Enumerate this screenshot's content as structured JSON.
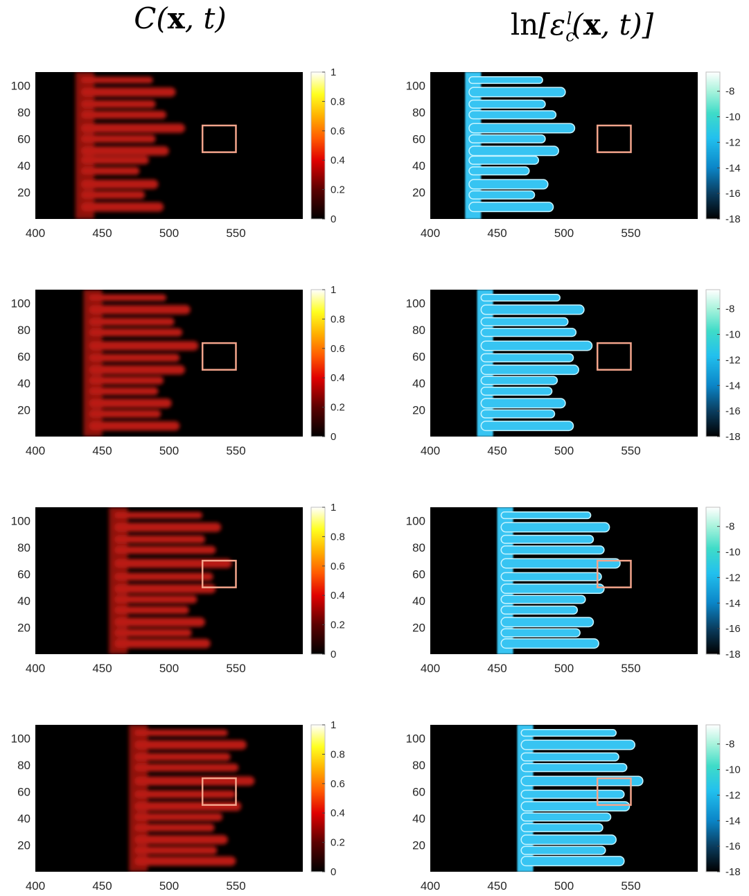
{
  "chart_data": [
    {
      "type": "heatmap",
      "title": "C(x, t)",
      "xlabel": "",
      "ylabel": "",
      "xlim": [
        400,
        600
      ],
      "ylim": [
        0,
        110
      ],
      "x_ticks": [
        "400",
        "450",
        "500",
        "550"
      ],
      "y_ticks": [
        "20",
        "40",
        "60",
        "80",
        "100"
      ],
      "colorbar": {
        "colormap": "hot",
        "ticks": [
          "0",
          "0.2",
          "0.4",
          "0.6",
          "0.8",
          "1"
        ],
        "range": [
          0,
          1
        ]
      },
      "panels": [
        {
          "box": {
            "x": [
              525,
              550
            ],
            "y": [
              50,
              70
            ]
          },
          "front": 430
        },
        {
          "box": {
            "x": [
              525,
              550
            ],
            "y": [
              50,
              70
            ]
          },
          "front": 436
        },
        {
          "box": {
            "x": [
              525,
              550
            ],
            "y": [
              50,
              70
            ]
          },
          "front": 455
        },
        {
          "box": {
            "x": [
              525,
              550
            ],
            "y": [
              50,
              70
            ]
          },
          "front": 470
        }
      ]
    },
    {
      "type": "heatmap",
      "title": "ln[ε_c^l(x, t)]",
      "xlabel": "",
      "ylabel": "",
      "xlim": [
        400,
        600
      ],
      "ylim": [
        0,
        110
      ],
      "x_ticks": [
        "400",
        "450",
        "500",
        "550"
      ],
      "y_ticks": [
        "20",
        "40",
        "60",
        "80",
        "100"
      ],
      "colorbar": {
        "colormap": "cool-blue",
        "ticks": [
          "-8",
          "-10",
          "-12",
          "-14",
          "-16",
          "-18"
        ],
        "range": [
          -18,
          -6.5
        ]
      },
      "panels": [
        {
          "box": {
            "x": [
              525,
              550
            ],
            "y": [
              50,
              70
            ]
          },
          "front": 426
        },
        {
          "box": {
            "x": [
              525,
              550
            ],
            "y": [
              50,
              70
            ]
          },
          "front": 435
        },
        {
          "box": {
            "x": [
              525,
              550
            ],
            "y": [
              50,
              70
            ]
          },
          "front": 450
        },
        {
          "box": {
            "x": [
              525,
              550
            ],
            "y": [
              50,
              70
            ]
          },
          "front": 465
        }
      ]
    }
  ],
  "colors": {
    "box": "#f4a58c",
    "background": "#000000",
    "c_finger": "#c41a12",
    "eps_finger": "#37c4f2",
    "eps_edge": "#c6f4ff"
  }
}
